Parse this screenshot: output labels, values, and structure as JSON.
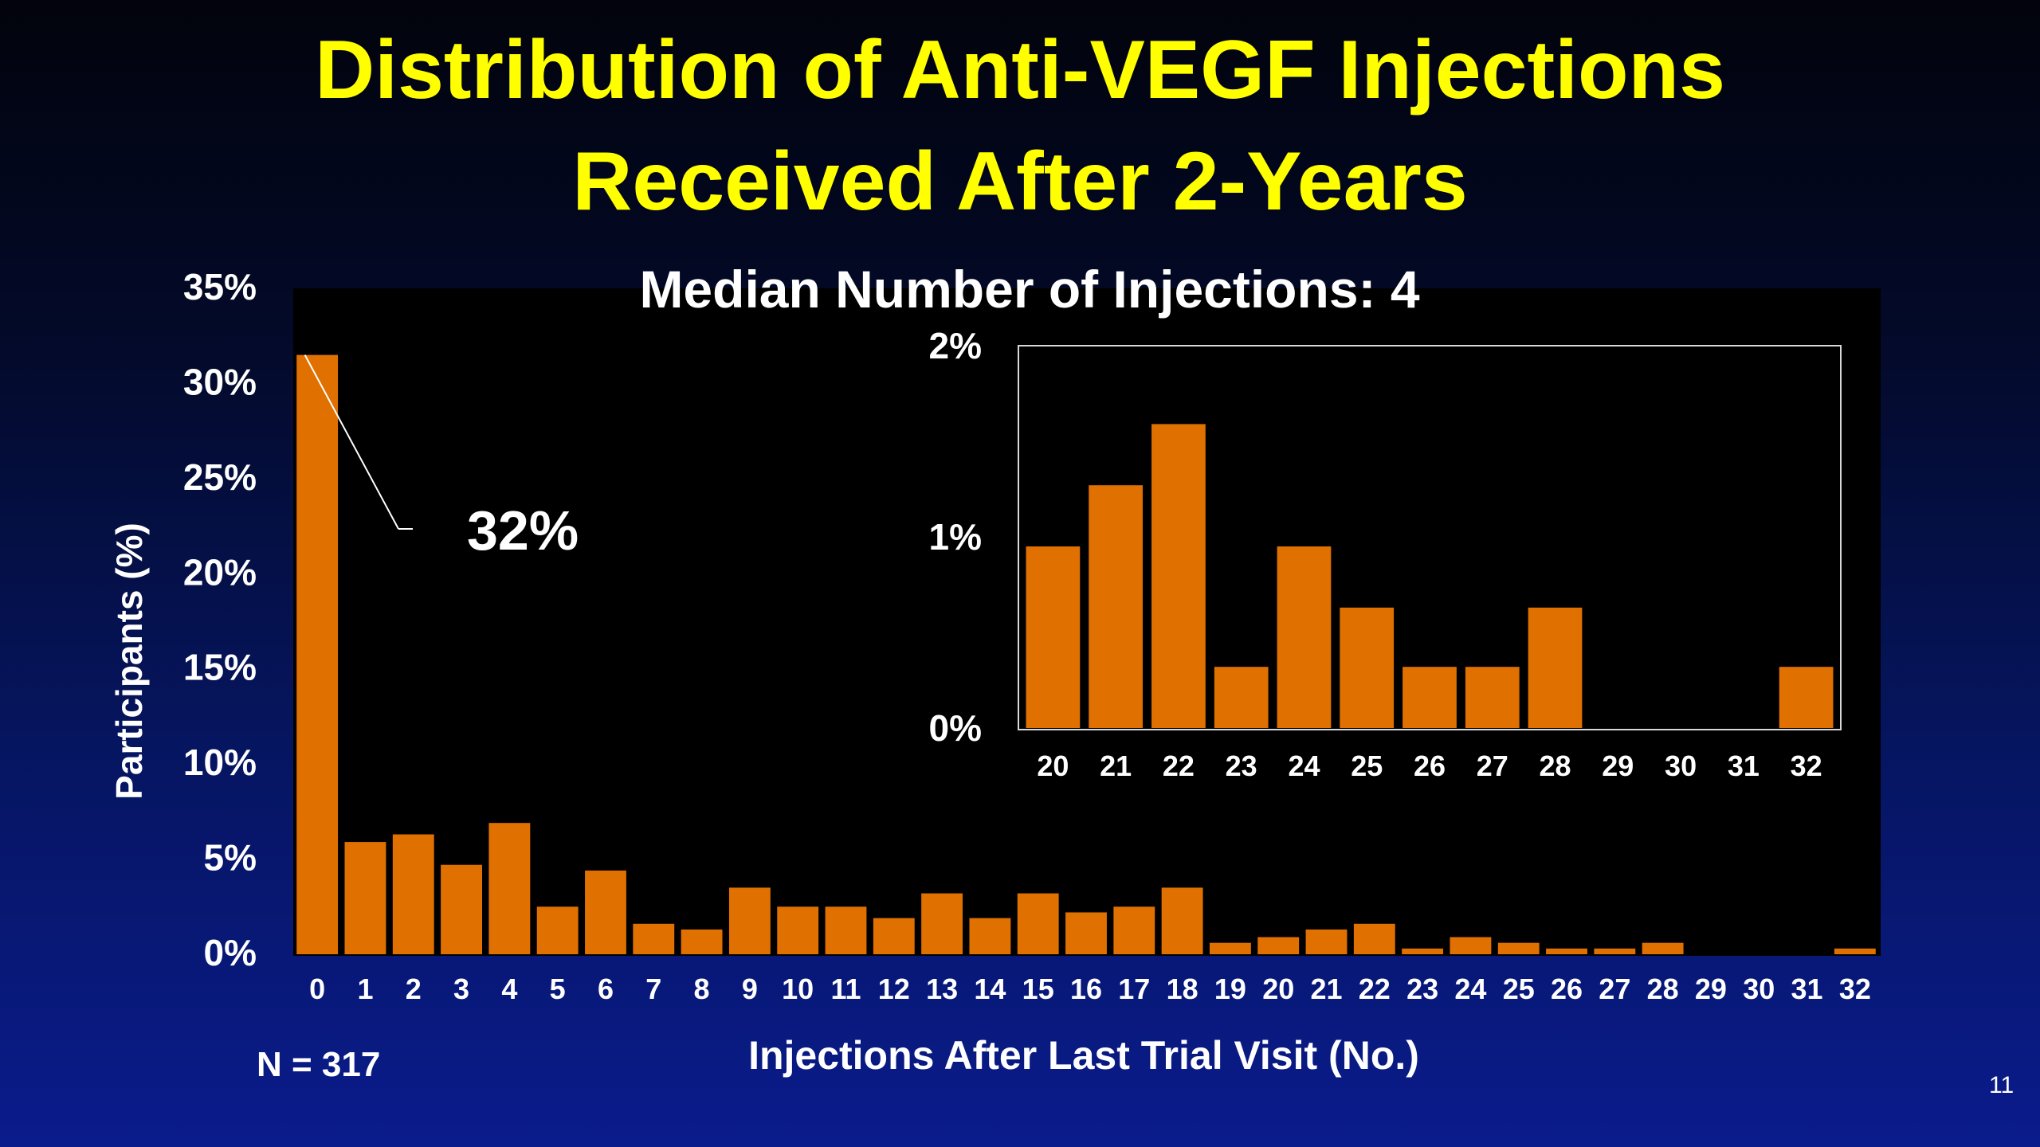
{
  "slide": {
    "title_line1": "Distribution of Anti-VEGF Injections",
    "title_line2": "Received After 2-Years",
    "sample_size": "N = 317",
    "slide_number": "11"
  },
  "colors": {
    "bar": "#e07000",
    "title": "#ffff00",
    "text": "#ffffff",
    "plot_bg": "#000000"
  },
  "chart_data": [
    {
      "type": "bar",
      "title": "Median Number of Injections: 4",
      "xlabel": "Injections After Last Trial Visit (No.)",
      "ylabel": "Participants (%)",
      "ylim": [
        0,
        35
      ],
      "yticks": [
        "0%",
        "5%",
        "10%",
        "15%",
        "20%",
        "25%",
        "30%",
        "35%"
      ],
      "ytick_values": [
        0,
        5,
        10,
        15,
        20,
        25,
        30,
        35
      ],
      "categories": [
        "0",
        "1",
        "2",
        "3",
        "4",
        "5",
        "6",
        "7",
        "8",
        "9",
        "10",
        "11",
        "12",
        "13",
        "14",
        "15",
        "16",
        "17",
        "18",
        "19",
        "20",
        "21",
        "22",
        "23",
        "24",
        "25",
        "26",
        "27",
        "28",
        "29",
        "30",
        "31",
        "32"
      ],
      "values": [
        31.5,
        5.9,
        6.3,
        4.7,
        6.9,
        2.5,
        4.4,
        1.6,
        1.3,
        3.5,
        2.5,
        2.5,
        1.9,
        3.2,
        1.9,
        3.2,
        2.2,
        2.5,
        3.5,
        0.6,
        0.9,
        1.3,
        1.6,
        0.3,
        0.9,
        0.6,
        0.3,
        0.3,
        0.6,
        0,
        0,
        0,
        0.3
      ],
      "annotation": "32%",
      "annotated_category": "0",
      "grid": false
    },
    {
      "type": "bar",
      "title": "",
      "ylim": [
        0,
        2
      ],
      "yticks": [
        "0%",
        "1%",
        "2%"
      ],
      "ytick_values": [
        0,
        1,
        2
      ],
      "categories": [
        "20",
        "21",
        "22",
        "23",
        "24",
        "25",
        "26",
        "27",
        "28",
        "29",
        "30",
        "31",
        "32"
      ],
      "values": [
        0.95,
        1.27,
        1.59,
        0.32,
        0.95,
        0.63,
        0.32,
        0.32,
        0.63,
        0,
        0,
        0,
        0.32
      ],
      "grid": false
    }
  ]
}
